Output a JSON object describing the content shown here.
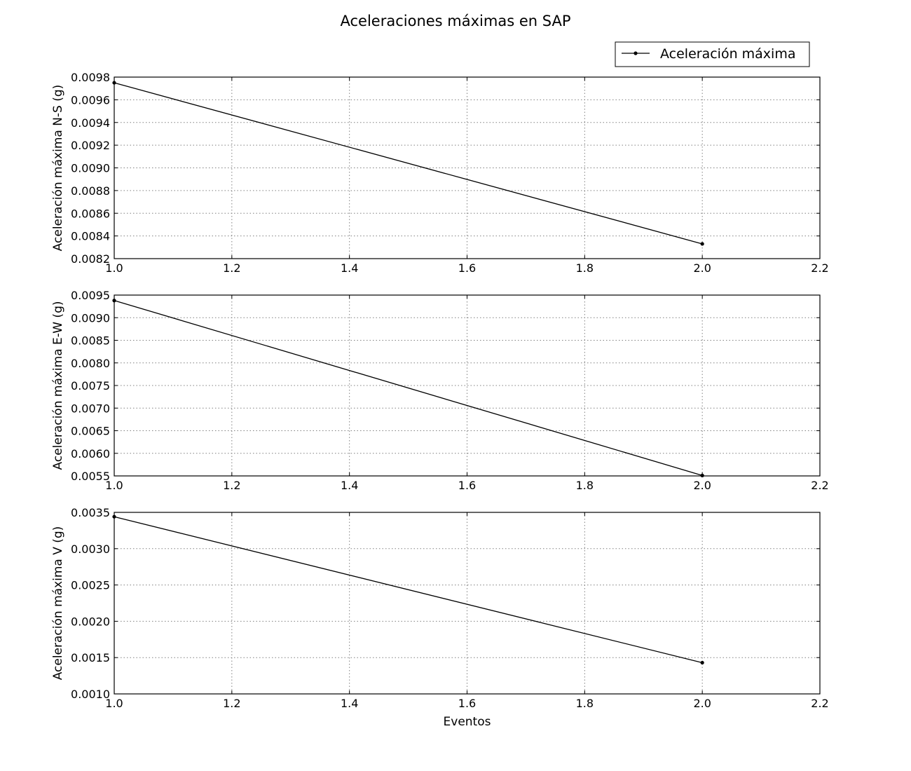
{
  "figure": {
    "title": "Aceleraciones máximas en SAP",
    "legend_label": "Aceleración máxima",
    "legend_position": "top-right",
    "xlabel": "Eventos"
  },
  "colors": {
    "line": "#000000",
    "grid": "#808080",
    "background": "#ffffff"
  },
  "chart_data": [
    {
      "type": "line",
      "ylabel": "Aceleración máxima N-S (g)",
      "x": [
        1.0,
        2.0
      ],
      "series": [
        {
          "name": "Aceleración máxima",
          "values": [
            0.00975,
            0.00833
          ]
        }
      ],
      "xlim": [
        1.0,
        2.2
      ],
      "ylim": [
        0.0082,
        0.0098
      ],
      "xticks": [
        1.0,
        1.2,
        1.4,
        1.6,
        1.8,
        2.0,
        2.2
      ],
      "xtick_labels": [
        "1.0",
        "1.2",
        "1.4",
        "1.6",
        "1.8",
        "2.0",
        "2.2"
      ],
      "yticks": [
        0.0082,
        0.0084,
        0.0086,
        0.0088,
        0.009,
        0.0092,
        0.0094,
        0.0096,
        0.0098
      ],
      "ytick_labels": [
        "0.0082",
        "0.0084",
        "0.0086",
        "0.0088",
        "0.0090",
        "0.0092",
        "0.0094",
        "0.0096",
        "0.0098"
      ],
      "grid": true
    },
    {
      "type": "line",
      "ylabel": "Aceleración máxima E-W (g)",
      "x": [
        1.0,
        2.0
      ],
      "series": [
        {
          "name": "Aceleración máxima",
          "values": [
            0.00938,
            0.00551
          ]
        }
      ],
      "xlim": [
        1.0,
        2.2
      ],
      "ylim": [
        0.0055,
        0.0095
      ],
      "xticks": [
        1.0,
        1.2,
        1.4,
        1.6,
        1.8,
        2.0,
        2.2
      ],
      "xtick_labels": [
        "1.0",
        "1.2",
        "1.4",
        "1.6",
        "1.8",
        "2.0",
        "2.2"
      ],
      "yticks": [
        0.0055,
        0.006,
        0.0065,
        0.007,
        0.0075,
        0.008,
        0.0085,
        0.009,
        0.0095
      ],
      "ytick_labels": [
        "0.0055",
        "0.0060",
        "0.0065",
        "0.0070",
        "0.0075",
        "0.0080",
        "0.0085",
        "0.0090",
        "0.0095"
      ],
      "grid": true
    },
    {
      "type": "line",
      "ylabel": "Aceleración máxima V (g)",
      "x": [
        1.0,
        2.0
      ],
      "series": [
        {
          "name": "Aceleración máxima",
          "values": [
            0.00344,
            0.00143
          ]
        }
      ],
      "xlim": [
        1.0,
        2.2
      ],
      "ylim": [
        0.001,
        0.0035
      ],
      "xticks": [
        1.0,
        1.2,
        1.4,
        1.6,
        1.8,
        2.0,
        2.2
      ],
      "xtick_labels": [
        "1.0",
        "1.2",
        "1.4",
        "1.6",
        "1.8",
        "2.0",
        "2.2"
      ],
      "yticks": [
        0.001,
        0.0015,
        0.002,
        0.0025,
        0.003,
        0.0035
      ],
      "ytick_labels": [
        "0.0010",
        "0.0015",
        "0.0020",
        "0.0025",
        "0.0030",
        "0.0035"
      ],
      "grid": true
    }
  ]
}
